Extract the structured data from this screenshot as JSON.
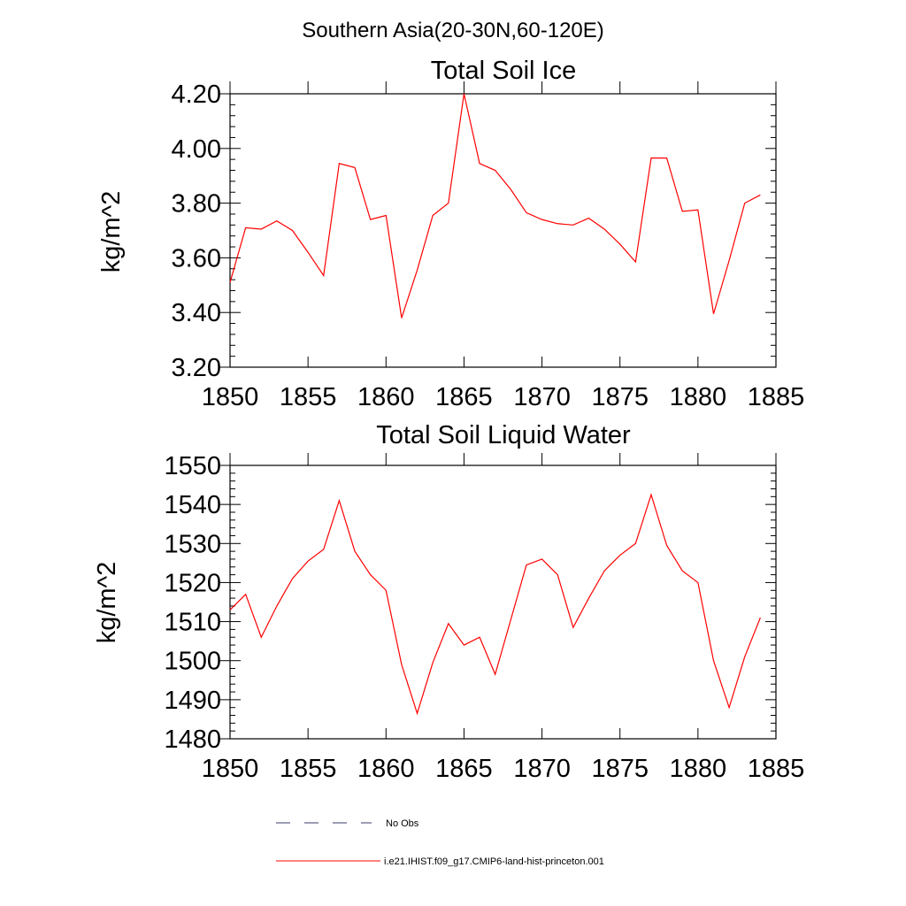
{
  "suptitle": "Southern Asia(20-30N,60-120E)",
  "chart_data": [
    {
      "type": "line",
      "title": "Total Soil Ice",
      "xlabel": "",
      "ylabel": "kg/m^2",
      "xlim": [
        1850,
        1885
      ],
      "ylim": [
        3.2,
        4.2
      ],
      "xticks": [
        1850,
        1855,
        1860,
        1865,
        1870,
        1875,
        1880,
        1885
      ],
      "xtick_labels": [
        "1850",
        "1855",
        "1860",
        "1865",
        "1870",
        "1875",
        "1880",
        "1885"
      ],
      "yticks": [
        3.2,
        3.4,
        3.6,
        3.8,
        4.0,
        4.2
      ],
      "ytick_labels": [
        "3.20",
        "3.40",
        "3.60",
        "3.80",
        "4.00",
        "4.20"
      ],
      "grid": false,
      "series": [
        {
          "name": "i.e21.IHIST.f09_g17.CMIP6-land-hist-princeton.001",
          "color": "#ff0000",
          "x": [
            1850,
            1851,
            1852,
            1853,
            1854,
            1855,
            1856,
            1857,
            1858,
            1859,
            1860,
            1861,
            1862,
            1863,
            1864,
            1865,
            1866,
            1867,
            1868,
            1869,
            1870,
            1871,
            1872,
            1873,
            1874,
            1875,
            1876,
            1877,
            1878,
            1879,
            1880,
            1881,
            1882,
            1883,
            1884
          ],
          "y": [
            3.51,
            3.71,
            3.705,
            3.735,
            3.7,
            3.62,
            3.535,
            3.945,
            3.93,
            3.74,
            3.755,
            3.38,
            3.555,
            3.755,
            3.8,
            4.2,
            3.945,
            3.92,
            3.85,
            3.765,
            3.74,
            3.725,
            3.72,
            3.745,
            3.705,
            3.65,
            3.585,
            3.965,
            3.965,
            3.77,
            3.775,
            3.395,
            3.59,
            3.8,
            3.83
          ]
        }
      ]
    },
    {
      "type": "line",
      "title": "Total Soil Liquid Water",
      "xlabel": "",
      "ylabel": "kg/m^2",
      "xlim": [
        1850,
        1885
      ],
      "ylim": [
        1480,
        1550
      ],
      "xticks": [
        1850,
        1855,
        1860,
        1865,
        1870,
        1875,
        1880,
        1885
      ],
      "xtick_labels": [
        "1850",
        "1855",
        "1860",
        "1865",
        "1870",
        "1875",
        "1880",
        "1885"
      ],
      "yticks": [
        1480,
        1490,
        1500,
        1510,
        1520,
        1530,
        1540,
        1550
      ],
      "ytick_labels": [
        "1480",
        "1490",
        "1500",
        "1510",
        "1520",
        "1530",
        "1540",
        "1550"
      ],
      "grid": false,
      "series": [
        {
          "name": "i.e21.IHIST.f09_g17.CMIP6-land-hist-princeton.001",
          "color": "#ff0000",
          "x": [
            1850,
            1851,
            1852,
            1853,
            1854,
            1855,
            1856,
            1857,
            1858,
            1859,
            1860,
            1861,
            1862,
            1863,
            1864,
            1865,
            1866,
            1867,
            1868,
            1869,
            1870,
            1871,
            1872,
            1873,
            1874,
            1875,
            1876,
            1877,
            1878,
            1879,
            1880,
            1881,
            1882,
            1883,
            1884
          ],
          "y": [
            1513,
            1517,
            1506,
            1514,
            1521,
            1525.5,
            1528.5,
            1541,
            1528,
            1522,
            1518,
            1499,
            1486.5,
            1499.5,
            1509.5,
            1504,
            1506,
            1496.5,
            1510.5,
            1524.5,
            1526,
            1522,
            1508.5,
            1516,
            1523,
            1527,
            1530,
            1542.5,
            1529.5,
            1523,
            1520,
            1500,
            1488,
            1501,
            1511
          ]
        }
      ]
    }
  ],
  "legend": {
    "placement": "bottom",
    "items": [
      {
        "label": "No Obs",
        "color": "#3a3a6e",
        "style": "dashed"
      },
      {
        "label": "i.e21.IHIST.f09_g17.CMIP6-land-hist-princeton.001",
        "color": "#ff0000",
        "style": "solid"
      }
    ]
  }
}
